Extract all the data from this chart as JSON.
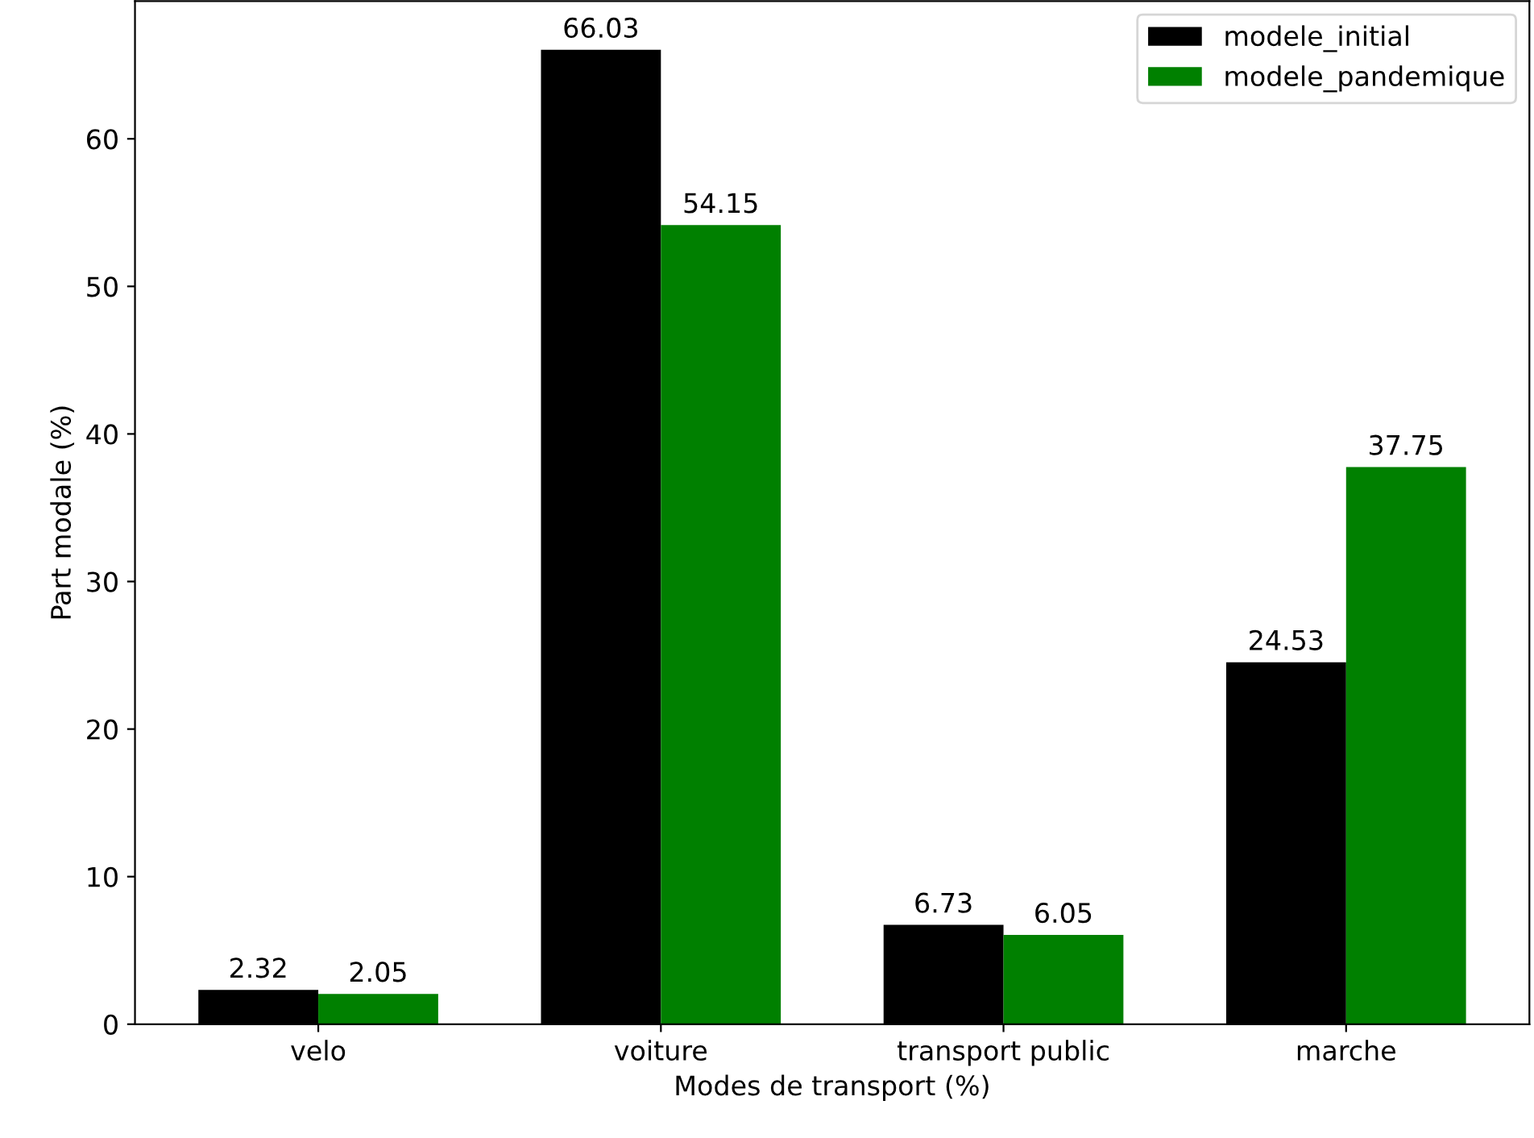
{
  "chart_data": {
    "type": "bar",
    "xlabel": "Modes de transport (%)",
    "ylabel": "Part modale (%)",
    "categories": [
      "velo",
      "voiture",
      "transport public",
      "marche"
    ],
    "series": [
      {
        "name": "modele_initial",
        "color": "#000000",
        "values": [
          2.32,
          66.03,
          6.73,
          24.53
        ]
      },
      {
        "name": "modele_pandemique",
        "color": "#008000",
        "values": [
          2.05,
          54.15,
          6.05,
          37.75
        ]
      }
    ],
    "ylim": [
      0,
      69.33
    ],
    "yticks": [
      0,
      10,
      20,
      30,
      40,
      50,
      60
    ],
    "data_labels": true,
    "legend": "top right",
    "grid": false
  }
}
